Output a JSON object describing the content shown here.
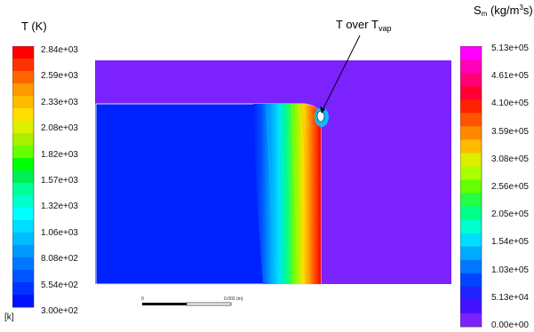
{
  "left_legend": {
    "title": "T (K)",
    "unit": "[k]",
    "ticks": [
      "2.84e+03",
      "2.59e+03",
      "2.33e+03",
      "2.08e+03",
      "1.82e+03",
      "1.57e+03",
      "1.32e+03",
      "1.06e+03",
      "8.08e+02",
      "5.54e+02",
      "3.00e+02"
    ],
    "colors": [
      "#ff0000",
      "#ff3300",
      "#ff6600",
      "#ff9900",
      "#ffbb00",
      "#ffdd00",
      "#ddf000",
      "#aaee00",
      "#66ff00",
      "#00ff00",
      "#00ee55",
      "#00ff99",
      "#00ffcc",
      "#00ffff",
      "#00ddff",
      "#00bbff",
      "#0099ff",
      "#0077ff",
      "#0055ff",
      "#0033ff",
      "#0011ff"
    ]
  },
  "right_legend": {
    "title_main": "S",
    "title_sub": "m",
    "title_unit_a": " (kg/m",
    "title_sup": "3",
    "title_unit_b": "s)",
    "ticks": [
      "5.13e+05",
      "4.61e+05",
      "4.10e+05",
      "3.59e+05",
      "3.08e+05",
      "2.56e+05",
      "2.05e+05",
      "1.54e+05",
      "1.03e+05",
      "5.13e+04",
      "0.00e+00"
    ],
    "colors": [
      "#ff00ff",
      "#ff00bb",
      "#ff0077",
      "#ff0033",
      "#ff2200",
      "#ff5500",
      "#ff8800",
      "#ffbb00",
      "#ddee00",
      "#aaff00",
      "#66ff00",
      "#22ff44",
      "#00ff88",
      "#00ffcc",
      "#00ddff",
      "#00aaff",
      "#0077ff",
      "#0044ff",
      "#2222ff",
      "#4411ff",
      "#7b22ff"
    ]
  },
  "annotation": {
    "text_a": "T over T",
    "sub": "vap"
  },
  "scale_bar": {
    "start_label": "0",
    "end_label": "0.002 (m)"
  },
  "colors": {
    "background_domain": "#7b22ff",
    "solid_body": "#0022ff"
  }
}
